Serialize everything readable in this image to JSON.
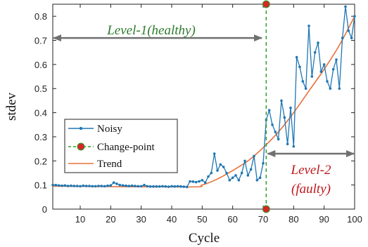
{
  "chart_data": {
    "type": "line",
    "xlabel": "Cycle",
    "ylabel": "stdev",
    "xlim": [
      1,
      100
    ],
    "ylim": [
      0,
      0.85
    ],
    "xticks": [
      10,
      20,
      30,
      40,
      50,
      60,
      70,
      80,
      90,
      100
    ],
    "yticks": [
      0,
      0.1,
      0.2,
      0.3,
      0.4,
      0.5,
      0.6,
      0.7,
      0.8
    ],
    "grid": false,
    "legend_position": "left",
    "series": [
      {
        "name": "Noisy",
        "color": "#1f77b4",
        "marker": "dot",
        "x": [
          1,
          2,
          3,
          4,
          5,
          6,
          7,
          8,
          9,
          10,
          11,
          12,
          13,
          14,
          15,
          16,
          17,
          18,
          19,
          20,
          21,
          22,
          23,
          24,
          25,
          26,
          27,
          28,
          29,
          30,
          31,
          32,
          33,
          34,
          35,
          36,
          37,
          38,
          39,
          40,
          41,
          42,
          43,
          44,
          45,
          46,
          47,
          48,
          49,
          50,
          51,
          52,
          53,
          54,
          55,
          56,
          57,
          58,
          59,
          60,
          61,
          62,
          63,
          64,
          65,
          66,
          67,
          68,
          69,
          70,
          71,
          72,
          73,
          74,
          75,
          76,
          77,
          78,
          79,
          80,
          81,
          82,
          83,
          84,
          85,
          86,
          87,
          88,
          89,
          90,
          91,
          92,
          93,
          94,
          95,
          96,
          97,
          98,
          99,
          100
        ],
        "y": [
          0.1,
          0.1,
          0.098,
          0.097,
          0.098,
          0.096,
          0.097,
          0.096,
          0.096,
          0.095,
          0.097,
          0.096,
          0.096,
          0.095,
          0.095,
          0.096,
          0.096,
          0.095,
          0.097,
          0.098,
          0.11,
          0.105,
          0.1,
          0.098,
          0.097,
          0.096,
          0.097,
          0.096,
          0.095,
          0.095,
          0.1,
          0.095,
          0.094,
          0.094,
          0.094,
          0.094,
          0.095,
          0.094,
          0.093,
          0.095,
          0.094,
          0.095,
          0.094,
          0.093,
          0.092,
          0.115,
          0.114,
          0.112,
          0.115,
          0.12,
          0.11,
          0.135,
          0.15,
          0.23,
          0.16,
          0.185,
          0.175,
          0.15,
          0.12,
          0.13,
          0.14,
          0.12,
          0.15,
          0.2,
          0.14,
          0.165,
          0.22,
          0.12,
          0.13,
          0.19,
          0.37,
          0.41,
          0.35,
          0.32,
          0.29,
          0.45,
          0.38,
          0.27,
          0.42,
          0.26,
          0.63,
          0.59,
          0.53,
          0.5,
          0.76,
          0.55,
          0.65,
          0.69,
          0.57,
          0.6,
          0.53,
          0.5,
          0.58,
          0.62,
          0.5,
          0.71,
          0.84,
          0.74,
          0.71,
          0.8
        ]
      },
      {
        "name": "Change-point",
        "color": "#2ca02c",
        "marker_color": "#d62728",
        "x": 71
      },
      {
        "name": "Trend",
        "color": "#e8703a",
        "x": [
          1,
          45,
          50,
          55,
          60,
          65,
          70,
          75,
          80,
          85,
          90,
          95,
          100
        ],
        "y": [
          0.095,
          0.092,
          0.1,
          0.125,
          0.16,
          0.2,
          0.255,
          0.32,
          0.4,
          0.49,
          0.58,
          0.68,
          0.8
        ]
      }
    ],
    "annotations": [
      {
        "text": "Level-1(healthy)",
        "color": "#2e7a2e",
        "span": [
          1,
          70
        ]
      },
      {
        "text_line1": "Level-2",
        "text_line2": "(faulty)",
        "color": "#c0171d",
        "span": [
          71,
          100
        ]
      }
    ]
  }
}
